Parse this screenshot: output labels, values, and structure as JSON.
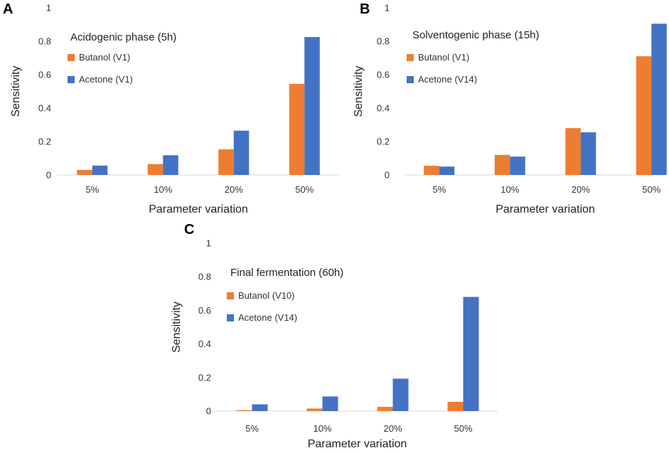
{
  "colors": {
    "butanol": "#ED7D31",
    "acetone": "#4472C4"
  },
  "chart_data": [
    {
      "panel": "A",
      "type": "bar",
      "title": "Acidogenic phase (5h)",
      "xlabel": "Parameter variation",
      "ylabel": "Sensitivity",
      "ylim": [
        0,
        1
      ],
      "yticks": [
        "0",
        "0.2",
        "0.4",
        "0.6",
        "0.8",
        "1"
      ],
      "categories": [
        "5%",
        "10%",
        "20%",
        "50%"
      ],
      "series": [
        {
          "name": "Butanol (V1)",
          "values": [
            0.03,
            0.065,
            0.153,
            0.545
          ]
        },
        {
          "name": "Acetone (V1)",
          "values": [
            0.056,
            0.118,
            0.265,
            0.825
          ]
        }
      ]
    },
    {
      "panel": "B",
      "type": "bar",
      "title": "Solventogenic phase (15h)",
      "xlabel": "Parameter variation",
      "ylabel": "Sensitivity",
      "ylim": [
        0,
        1
      ],
      "yticks": [
        "0",
        "0.2",
        "0.4",
        "0.6",
        "0.8",
        "1"
      ],
      "categories": [
        "5%",
        "10%",
        "20%",
        "50%"
      ],
      "series": [
        {
          "name": "Butanol (V1)",
          "values": [
            0.055,
            0.12,
            0.28,
            0.71
          ]
        },
        {
          "name": "Acetone (V14)",
          "values": [
            0.05,
            0.11,
            0.255,
            0.905
          ]
        }
      ]
    },
    {
      "panel": "C",
      "type": "bar",
      "title": "Final fermentation (60h)",
      "xlabel": "Parameter variation",
      "ylabel": "Sensitivity",
      "ylim": [
        0,
        1
      ],
      "yticks": [
        "0",
        "0.2",
        "0.4",
        "0.6",
        "0.8",
        "1"
      ],
      "categories": [
        "5%",
        "10%",
        "20%",
        "50%"
      ],
      "series": [
        {
          "name": "Butanol (V10)",
          "values": [
            0.005,
            0.015,
            0.025,
            0.055
          ]
        },
        {
          "name": "Acetone (V14)",
          "values": [
            0.04,
            0.087,
            0.193,
            0.68
          ]
        }
      ]
    }
  ]
}
